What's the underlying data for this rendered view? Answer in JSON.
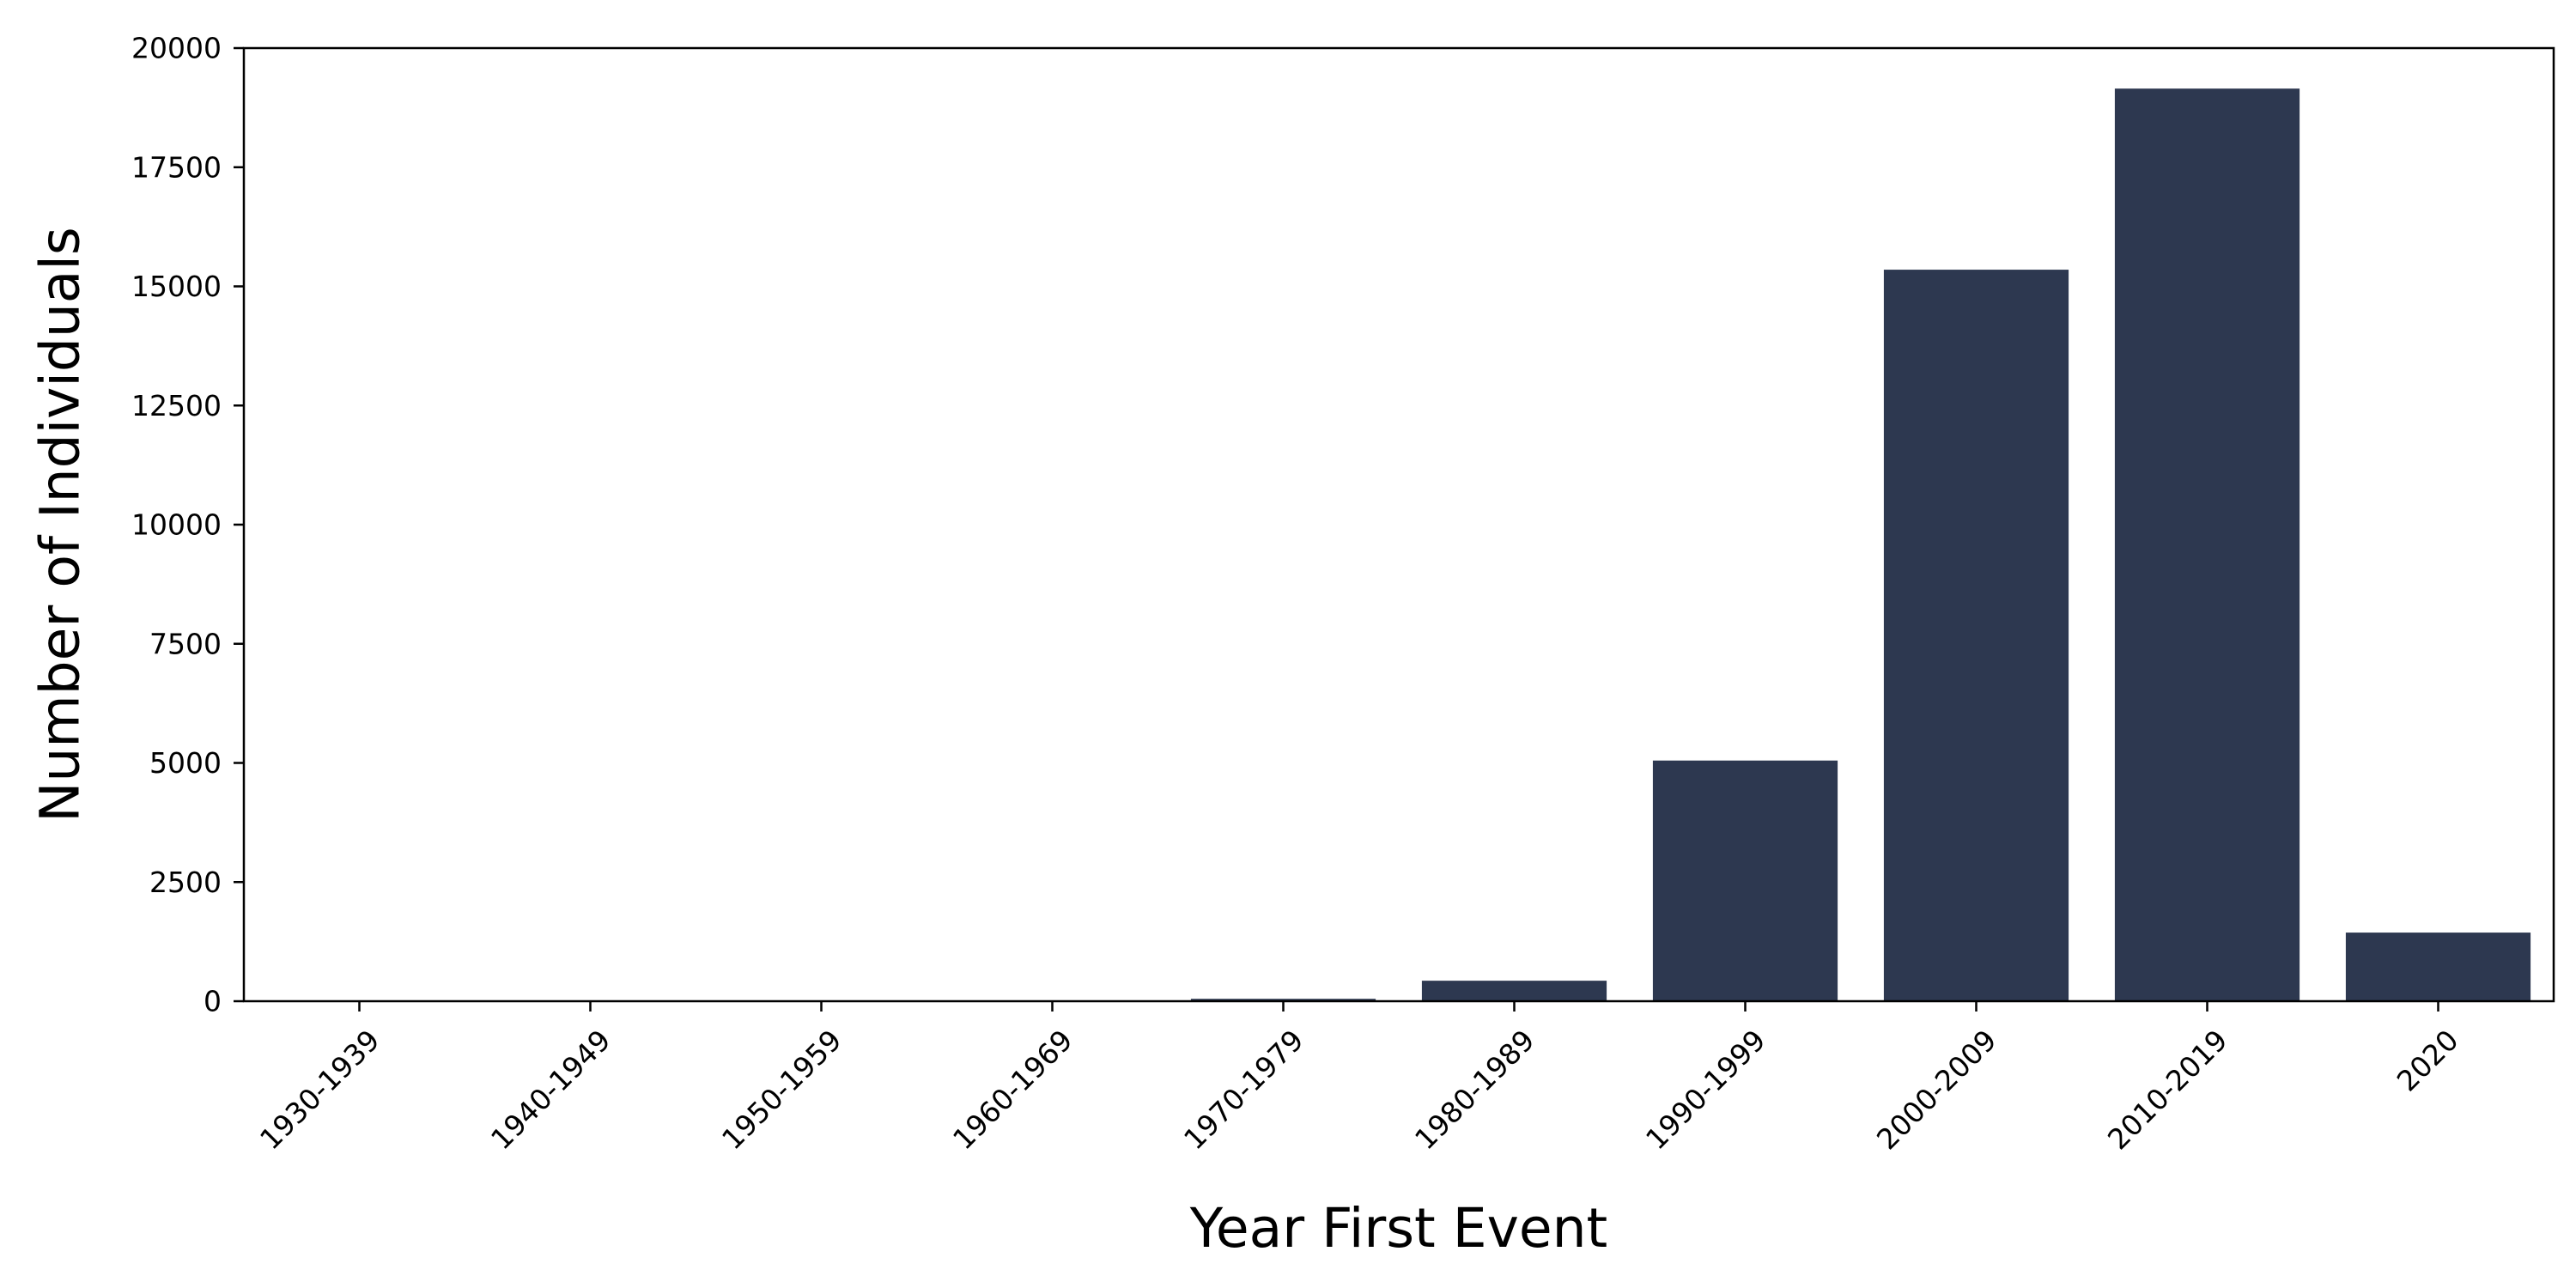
{
  "chart_data": {
    "type": "bar",
    "title": "",
    "xlabel": "Year First Event",
    "ylabel": "Number of Individuals",
    "categories": [
      "1930-1939",
      "1940-1949",
      "1950-1959",
      "1960-1969",
      "1970-1979",
      "1980-1989",
      "1990-1999",
      "2000-2009",
      "2010-2019",
      "2020"
    ],
    "values": [
      2,
      3,
      5,
      10,
      50,
      430,
      5050,
      15350,
      19150,
      1440
    ],
    "ylim": [
      0,
      20000
    ],
    "yticks": [
      "0",
      "2500",
      "5000",
      "7500",
      "10000",
      "12500",
      "15000",
      "17500",
      "20000"
    ],
    "grid": false,
    "bar_color": "#2d3850"
  }
}
